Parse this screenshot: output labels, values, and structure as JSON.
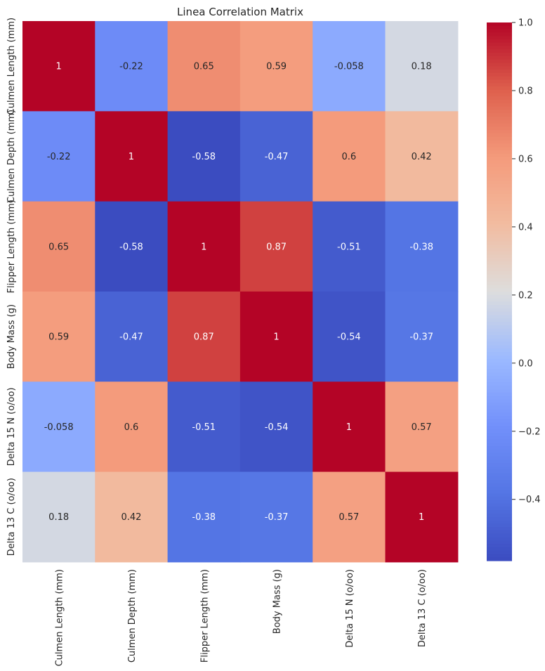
{
  "chart_data": {
    "type": "heatmap",
    "title": "Linea Correlation Matrix",
    "xlabel": "",
    "ylabel": "",
    "row_labels": [
      "Culmen Length (mm)",
      "Culmen Depth (mm)",
      "Flipper Length (mm)",
      "Body Mass (g)",
      "Delta 15 N (o/oo)",
      "Delta 13 C (o/oo)"
    ],
    "col_labels": [
      "Culmen Length (mm)",
      "Culmen Depth (mm)",
      "Flipper Length (mm)",
      "Body Mass (g)",
      "Delta 15 N (o/oo)",
      "Delta 13 C (o/oo)"
    ],
    "values": [
      [
        1,
        -0.22,
        0.65,
        0.59,
        -0.058,
        0.18
      ],
      [
        -0.22,
        1,
        -0.58,
        -0.47,
        0.6,
        0.42
      ],
      [
        0.65,
        -0.58,
        1,
        0.87,
        -0.51,
        -0.38
      ],
      [
        0.59,
        -0.47,
        0.87,
        1,
        -0.54,
        -0.37
      ],
      [
        -0.058,
        0.6,
        -0.51,
        -0.54,
        1,
        0.57
      ],
      [
        0.18,
        0.42,
        -0.38,
        -0.37,
        0.57,
        1
      ]
    ],
    "annotations": [
      [
        "1",
        "-0.22",
        "0.65",
        "0.59",
        "-0.058",
        "0.18"
      ],
      [
        "-0.22",
        "1",
        "-0.58",
        "-0.47",
        "0.6",
        "0.42"
      ],
      [
        "0.65",
        "-0.58",
        "1",
        "0.87",
        "-0.51",
        "-0.38"
      ],
      [
        "0.59",
        "-0.47",
        "0.87",
        "1",
        "-0.54",
        "-0.37"
      ],
      [
        "-0.058",
        "0.6",
        "-0.51",
        "-0.54",
        "1",
        "0.57"
      ],
      [
        "0.18",
        "0.42",
        "-0.38",
        "-0.37",
        "0.57",
        "1"
      ]
    ],
    "colormap": "coolwarm",
    "vmin": -0.58,
    "vmax": 1.0,
    "colorbar_ticks": [
      1.0,
      0.8,
      0.6,
      0.4,
      0.2,
      0.0,
      -0.2,
      -0.4
    ],
    "colorbar_tick_labels": [
      "1.0",
      "0.8",
      "0.6",
      "0.4",
      "0.2",
      "0.0",
      "−0.2",
      "−0.4"
    ],
    "grid": false,
    "legend": "colorbar-right"
  }
}
